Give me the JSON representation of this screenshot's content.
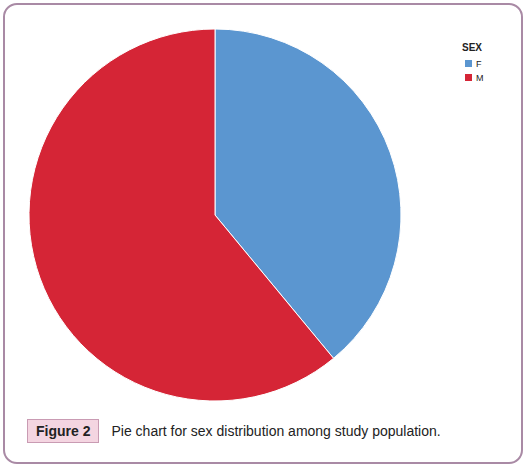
{
  "chart_data": {
    "type": "pie",
    "figure_label": "Figure 2",
    "caption": "Pie chart for sex distribution among study population.",
    "legend_title": "SEX",
    "categories": [
      "F",
      "M"
    ],
    "values": [
      39,
      61
    ],
    "colors": [
      "#5b96d0",
      "#d52536"
    ],
    "legend": "upper right"
  }
}
